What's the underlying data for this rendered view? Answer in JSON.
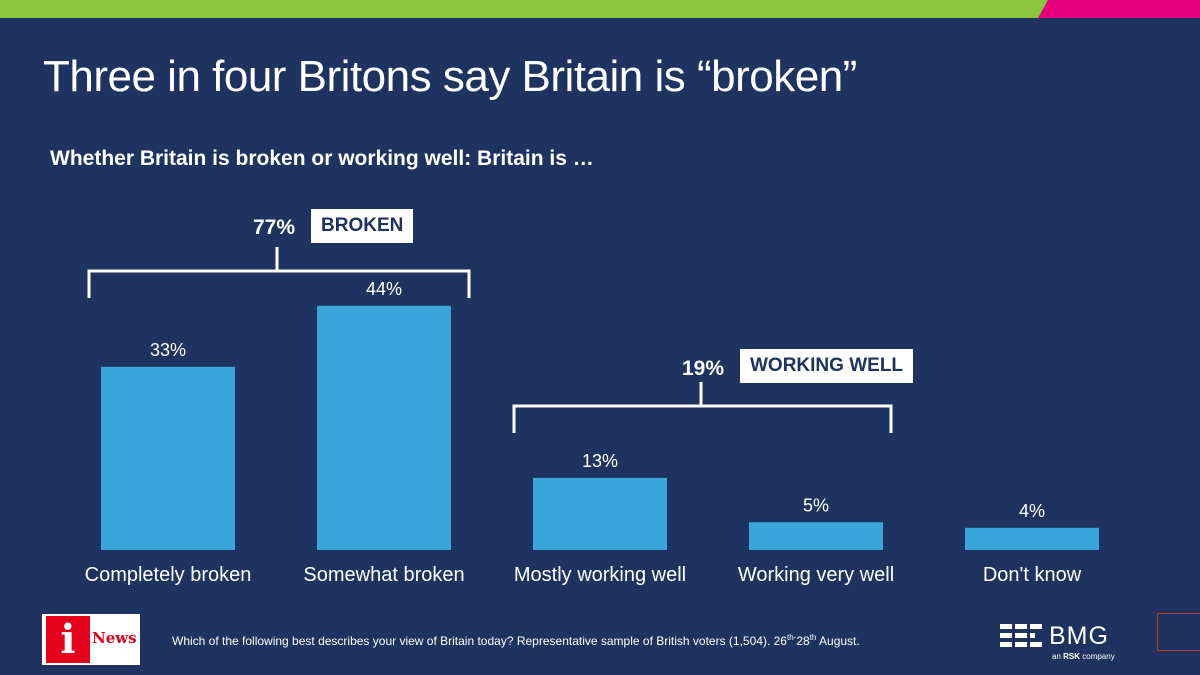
{
  "colors": {
    "background": "#1e3360",
    "bar": "#3aa6dc",
    "accent_green": "#8cc63f",
    "accent_pink": "#e6007e"
  },
  "title": "Three in four Britons say Britain is “broken”",
  "subtitle": "Whether Britain is broken or working well: Britain is …",
  "groups": [
    {
      "pct": "77%",
      "label": "BROKEN"
    },
    {
      "pct": "19%",
      "label": "WORKING WELL"
    }
  ],
  "chart_data": {
    "type": "bar",
    "title": "Whether Britain is broken or working well: Britain is …",
    "categories": [
      "Completely broken",
      "Somewhat broken",
      "Mostly working well",
      "Working very well",
      "Don't know"
    ],
    "values": [
      33,
      44,
      13,
      5,
      4
    ],
    "value_labels": [
      "33%",
      "44%",
      "13%",
      "5%",
      "4%"
    ],
    "unit": "%",
    "ylim": [
      0,
      50
    ],
    "grid": false,
    "xlabel": "",
    "ylabel": ""
  },
  "footer": {
    "logo_letter": "i",
    "logo_word": "News",
    "note": "Which of the following best describes your view of Britain today? Representative sample of British voters (1,504). 26",
    "note_sup1": "th-",
    "note_mid": "28",
    "note_sup2": "th",
    "note_end": " August.",
    "brand": "BMG",
    "brand_sub_prefix": "an ",
    "brand_sub_bold": "RSK",
    "brand_sub_suffix": " company"
  }
}
